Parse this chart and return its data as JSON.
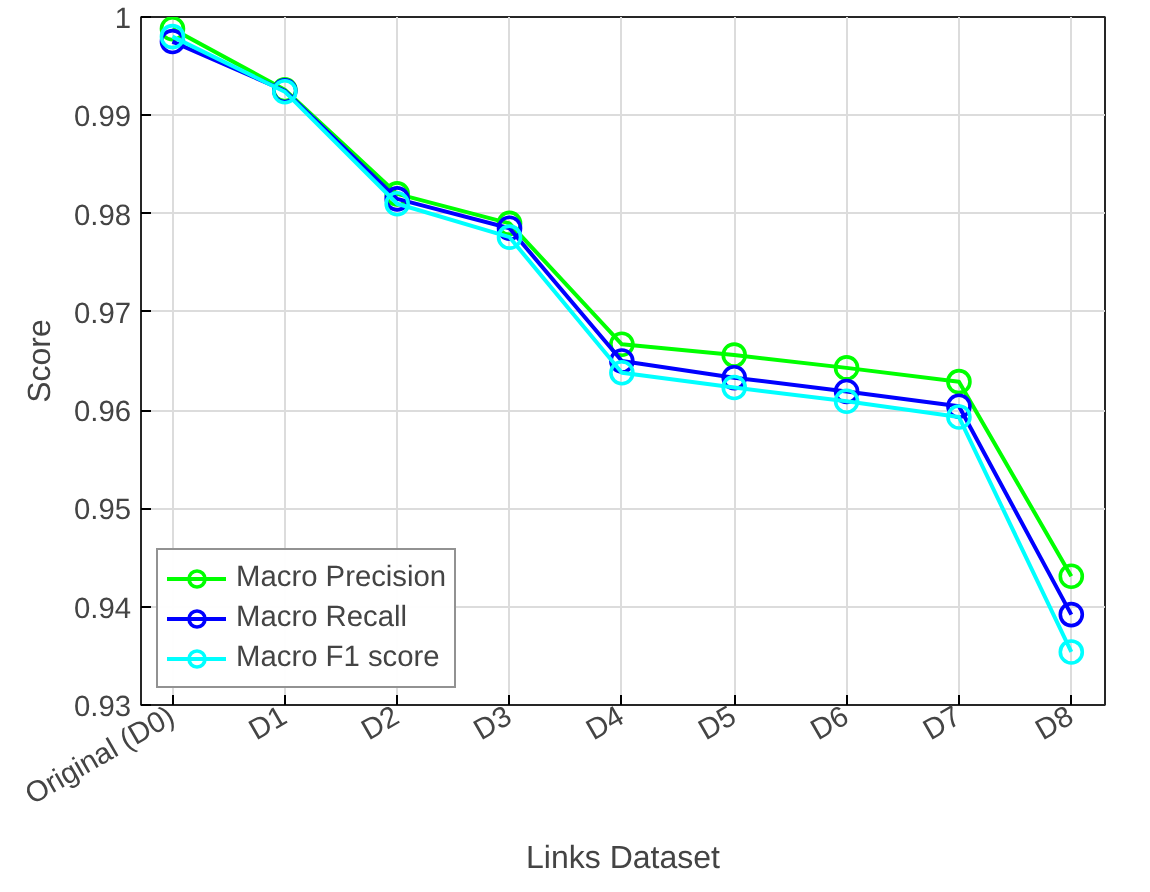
{
  "chart_data": {
    "type": "line",
    "xlabel": "Links Dataset",
    "ylabel": "Score",
    "categories": [
      "Original (D0)",
      "D1",
      "D2",
      "D3",
      "D4",
      "D5",
      "D6",
      "D7",
      "D8"
    ],
    "series": [
      {
        "name": "Macro Precision",
        "color": "#00ff00",
        "values": [
          0.9988,
          0.9926,
          0.982,
          0.979,
          0.9667,
          0.9656,
          0.9643,
          0.9629,
          0.9431
        ]
      },
      {
        "name": "Macro Recall",
        "color": "#0000ff",
        "values": [
          0.9975,
          0.9925,
          0.9815,
          0.9785,
          0.965,
          0.9633,
          0.9619,
          0.9604,
          0.9392
        ]
      },
      {
        "name": "Macro F1 score",
        "color": "#00ffff",
        "values": [
          0.998,
          0.9924,
          0.981,
          0.9776,
          0.9638,
          0.9623,
          0.9609,
          0.9593,
          0.9354
        ]
      }
    ],
    "ylim": [
      0.93,
      1
    ],
    "yticks": [
      0.93,
      0.94,
      0.95,
      0.96,
      0.97,
      0.98,
      0.99,
      1
    ],
    "grid": true,
    "legend": "bottom left",
    "marker": "circle",
    "line_style": "solid"
  }
}
